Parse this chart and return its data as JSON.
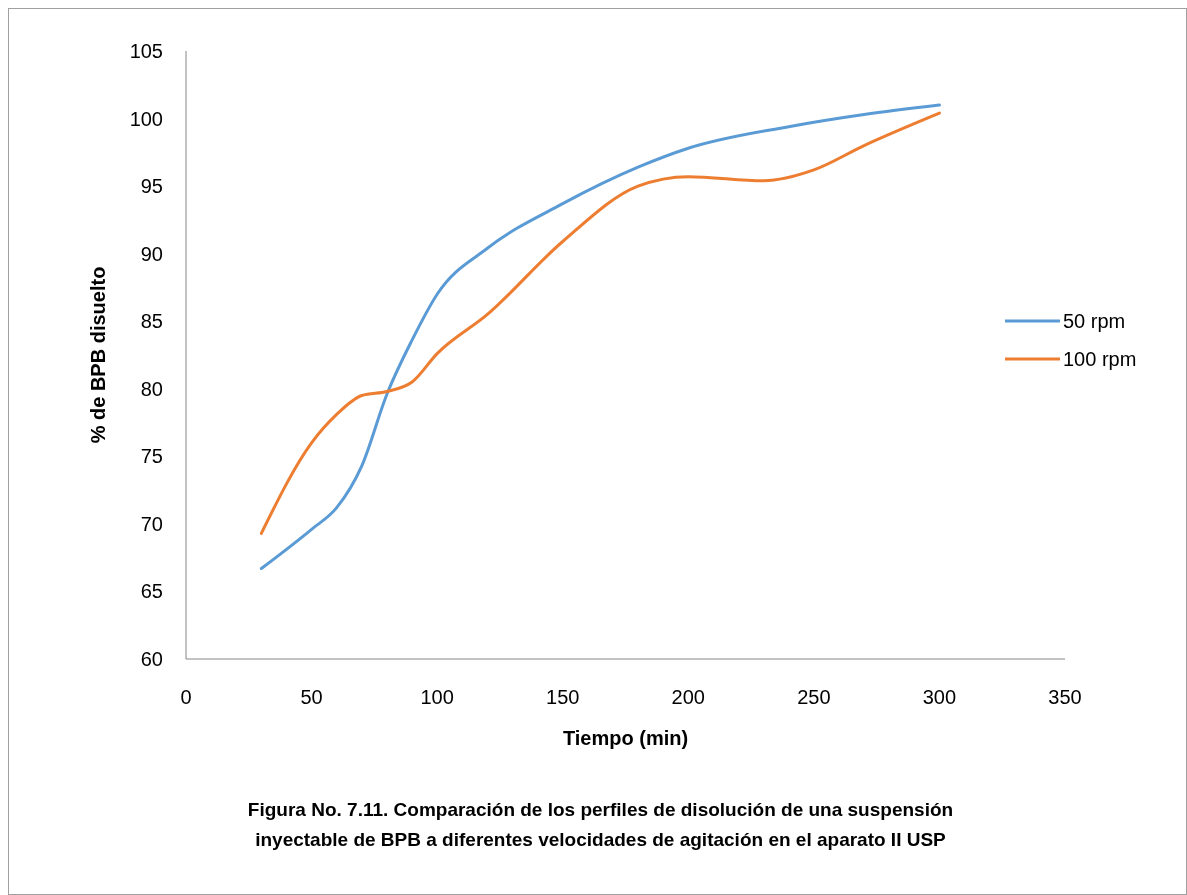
{
  "chart_data": {
    "type": "line",
    "title": "Figura No. 7.11. Comparación de los perfiles de disolución de una suspensión\ninyectable de BPB a diferentes velocidades de agitación en el aparato II USP",
    "xlabel": "Tiempo (min)",
    "ylabel": "% de BPB disuelto",
    "xlim": [
      0,
      350
    ],
    "xticks": [
      0,
      50,
      100,
      150,
      200,
      250,
      300,
      350
    ],
    "ylim": [
      60,
      105
    ],
    "yticks": [
      60,
      65,
      70,
      75,
      80,
      85,
      90,
      95,
      100,
      105
    ],
    "grid": false,
    "legend": "right",
    "marker": "none",
    "line_style": "solid",
    "series": [
      {
        "name": "50 rpm",
        "color": "#5b9bd5",
        "x": [
          30,
          50,
          60,
          70,
          80,
          90,
          100,
          120,
          150,
          180,
          200,
          240,
          270,
          300
        ],
        "values": [
          66.7,
          69.6,
          71.2,
          74.3,
          79.6,
          83.6,
          87.0,
          90.4,
          93.7,
          96.4,
          97.8,
          99.4,
          100.3,
          101.0
        ]
      },
      {
        "name": "100 rpm",
        "color": "#ed7d31",
        "x": [
          30,
          50,
          60,
          70,
          80,
          90,
          100,
          120,
          150,
          180,
          200,
          230,
          250,
          270,
          300
        ],
        "values": [
          69.3,
          76.0,
          78.1,
          79.5,
          79.8,
          80.5,
          82.6,
          85.5,
          90.9,
          95.0,
          95.7,
          95.4,
          96.2,
          98.0,
          100.4
        ]
      }
    ]
  }
}
